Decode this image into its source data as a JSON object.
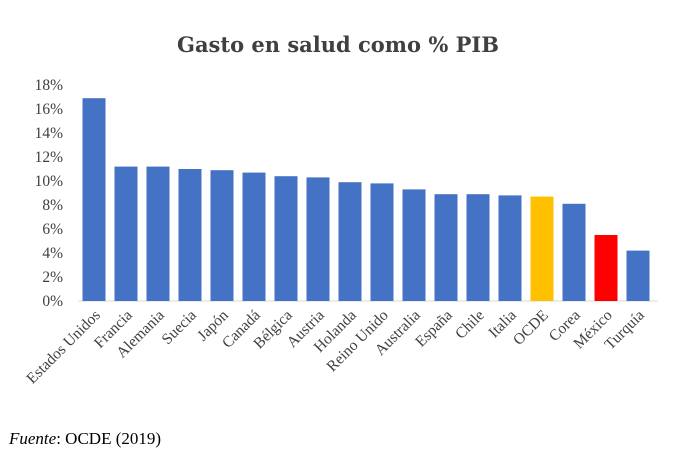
{
  "chart_data": {
    "type": "bar",
    "title": "Gasto en salud como % PIB",
    "xlabel": "",
    "ylabel": "",
    "ylim": [
      0,
      18
    ],
    "yticks": [
      "0%",
      "2%",
      "4%",
      "6%",
      "8%",
      "10%",
      "12%",
      "14%",
      "16%",
      "18%"
    ],
    "grid": false,
    "categories": [
      "Estados Unidos",
      "Francia",
      "Alemania",
      "Suecia",
      "Japón",
      "Canadá",
      "Bélgica",
      "Austria",
      "Holanda",
      "Reino Unido",
      "Australia",
      "España",
      "Chile",
      "Italia",
      "OCDE",
      "Corea",
      "México",
      "Turquía"
    ],
    "values": [
      16.9,
      11.2,
      11.2,
      11.0,
      10.9,
      10.7,
      10.4,
      10.3,
      9.9,
      9.8,
      9.3,
      8.9,
      8.9,
      8.8,
      8.7,
      8.1,
      5.5,
      4.2
    ],
    "colors": {
      "default": "#4472c4",
      "OCDE": "#ffc000",
      "México": "#ff0000"
    }
  },
  "source": {
    "label": "Fuente",
    "text": ": OCDE (2019)"
  }
}
